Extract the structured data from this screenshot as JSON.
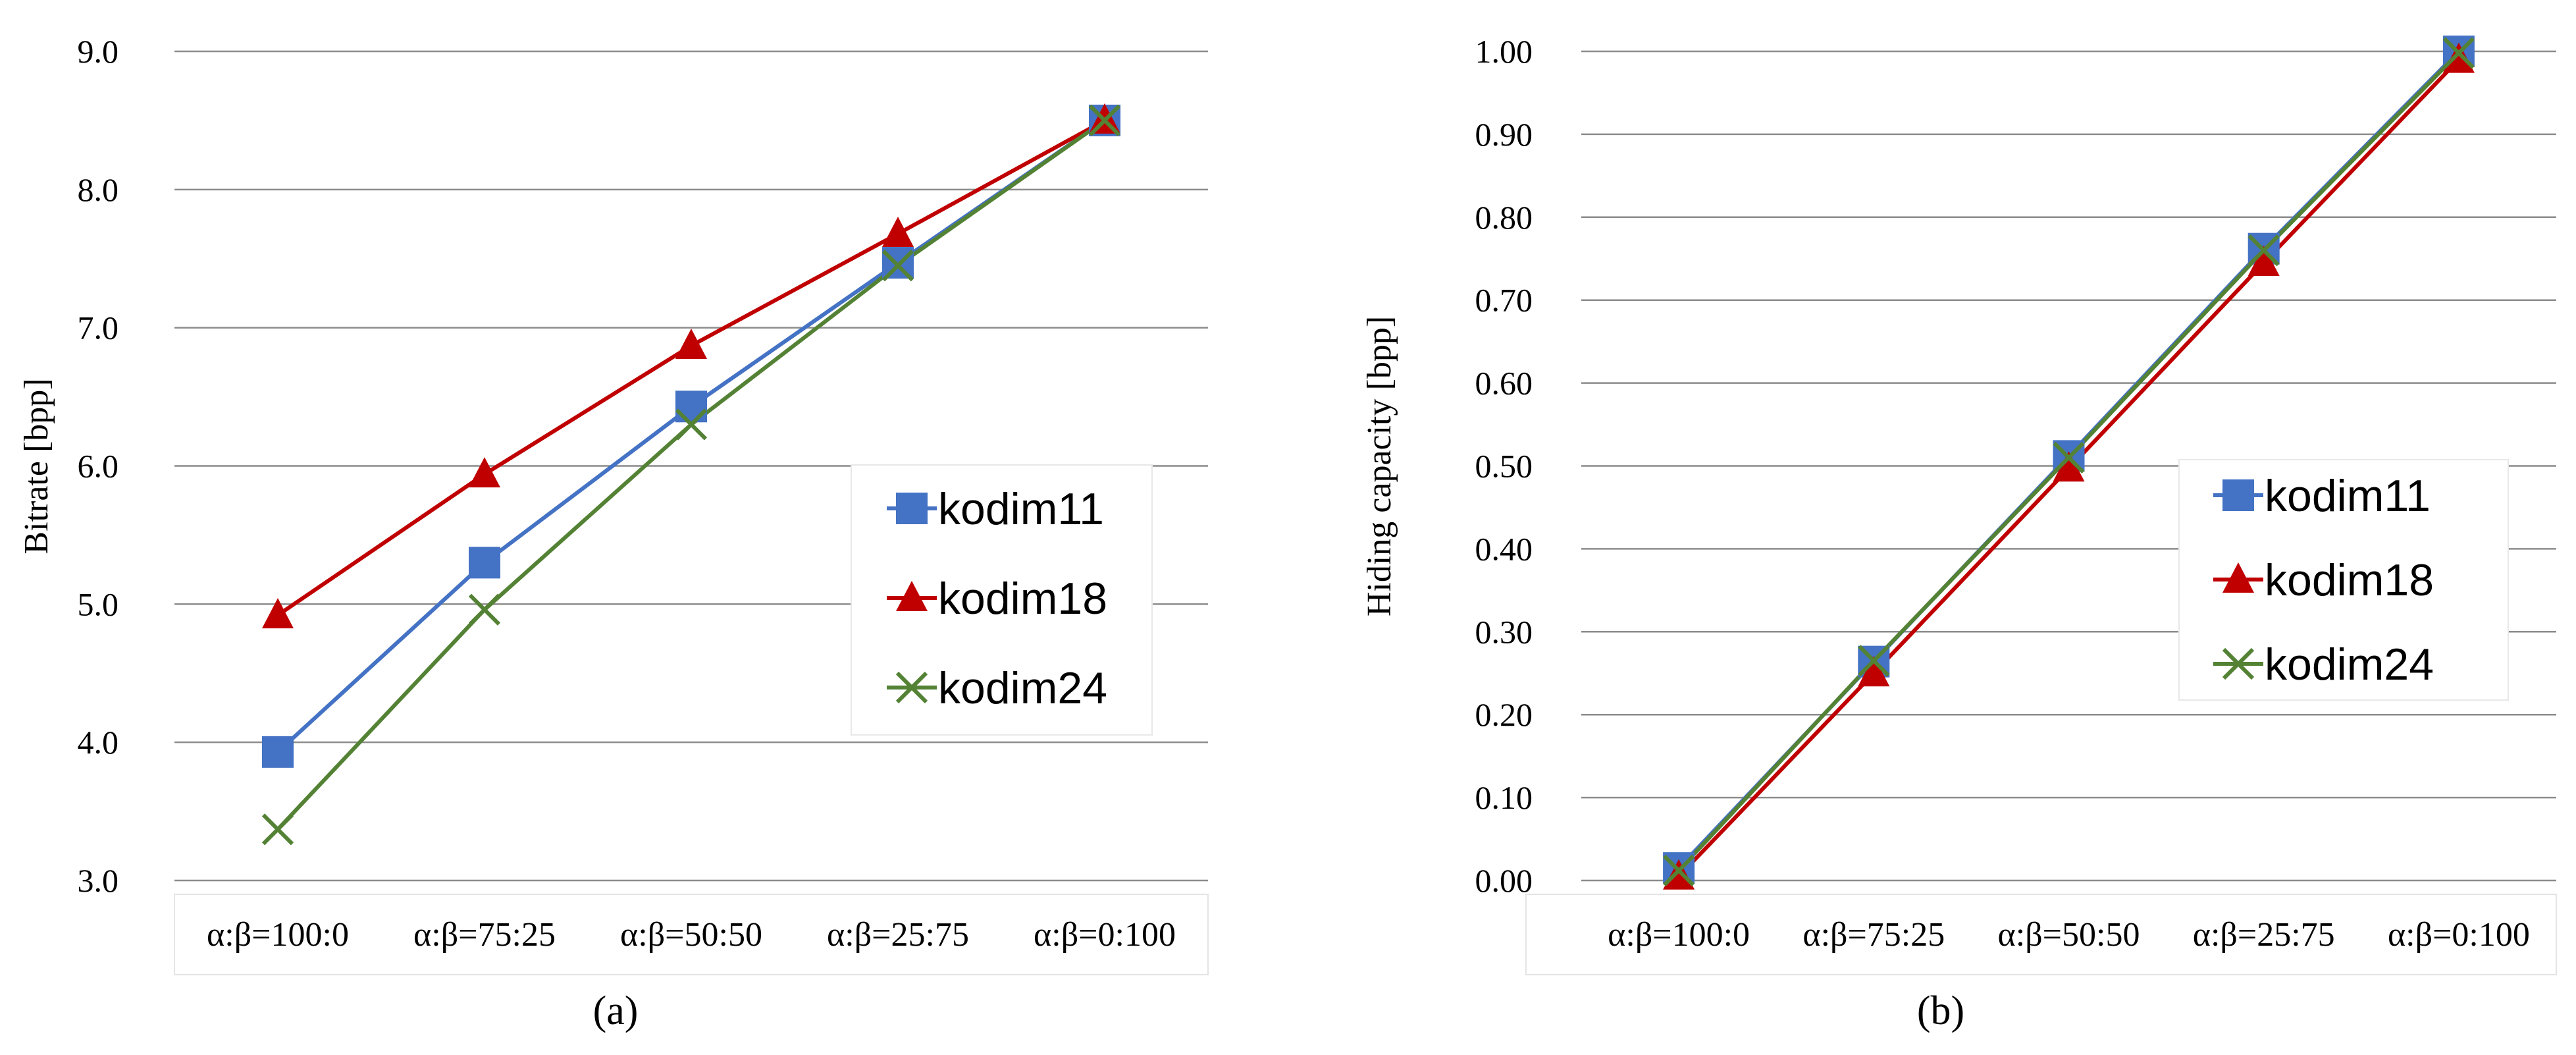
{
  "chart_data": [
    {
      "type": "line",
      "panel_label": "(a)",
      "ylabel": "Bitrate [bpp]",
      "ylim": [
        3.0,
        9.0
      ],
      "ystep": 1.0,
      "ydecimals": 1,
      "categories": [
        "α:β=100:0",
        "α:β=75:25",
        "α:β=50:50",
        "α:β=25:75",
        "α:β=0:100"
      ],
      "series": [
        {
          "name": "kodim11",
          "marker": "square",
          "color": "#4472C4",
          "values": [
            3.93,
            5.3,
            6.43,
            7.47,
            8.5
          ]
        },
        {
          "name": "kodim18",
          "marker": "triangle",
          "color": "#C00000",
          "values": [
            4.92,
            5.94,
            6.87,
            7.68,
            8.5
          ]
        },
        {
          "name": "kodim24",
          "marker": "x",
          "color": "#548235",
          "values": [
            3.37,
            4.96,
            6.3,
            7.45,
            8.5
          ]
        }
      ],
      "legend_position": "right"
    },
    {
      "type": "line",
      "panel_label": "(b)",
      "ylabel": "Hiding capacity [bpp]",
      "ylim": [
        0.0,
        1.0
      ],
      "ystep": 0.1,
      "ydecimals": 2,
      "categories": [
        "α:β=100:0",
        "α:β=75:25",
        "α:β=50:50",
        "α:β=25:75",
        "α:β=0:100"
      ],
      "series": [
        {
          "name": "kodim11",
          "marker": "square",
          "color": "#4472C4",
          "values": [
            0.015,
            0.264,
            0.512,
            0.762,
            1.0
          ]
        },
        {
          "name": "kodim18",
          "marker": "triangle",
          "color": "#C00000",
          "values": [
            0.005,
            0.25,
            0.497,
            0.745,
            0.99
          ]
        },
        {
          "name": "kodim24",
          "marker": "x",
          "color": "#548235",
          "values": [
            0.012,
            0.265,
            0.51,
            0.76,
            0.998
          ]
        }
      ],
      "legend_position": "right"
    }
  ]
}
